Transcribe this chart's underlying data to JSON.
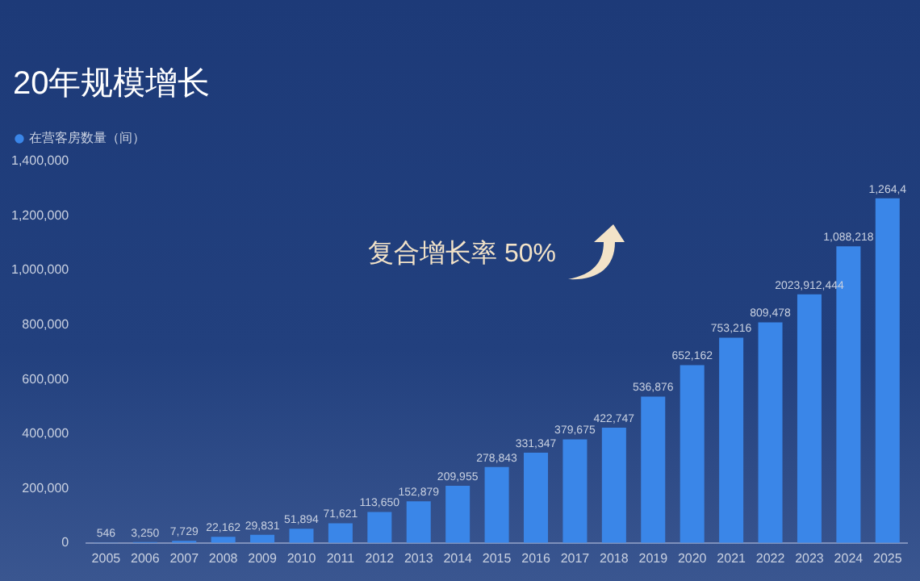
{
  "chart_data": {
    "type": "bar",
    "title": "20年规模增长",
    "categories": [
      "2005",
      "2006",
      "2007",
      "2008",
      "2009",
      "2010",
      "2011",
      "2012",
      "2013",
      "2014",
      "2015",
      "2016",
      "2017",
      "2018",
      "2019",
      "2020",
      "2021",
      "2022",
      "2023",
      "2024",
      "2025"
    ],
    "series": [
      {
        "name": "在营客房数量（间）",
        "color": "#3a86e8",
        "values": [
          546,
          3250,
          7729,
          22162,
          29831,
          51894,
          71621,
          113650,
          152879,
          209955,
          278843,
          331347,
          379675,
          422747,
          536876,
          652162,
          753216,
          809478,
          912444,
          1088218,
          1264400
        ],
        "value_labels": [
          "546",
          "3,250",
          "7,729",
          "22,162",
          "29,831",
          "51,894",
          "71,621",
          "113,650",
          "152,879",
          "209,955",
          "278,843",
          "331,347",
          "379,675",
          "422,747",
          "536,876",
          "652,162",
          "753,216",
          "809,478",
          "2023,912,444",
          "1,088,218",
          "1,264,4"
        ]
      }
    ],
    "ylim": [
      0,
      1400000
    ],
    "yticks": [
      0,
      {
        "value": 200000,
        "label": "200,000"
      },
      {
        "value": 400000,
        "label": "400,000"
      },
      {
        "value": 600000,
        "label": "600,000"
      },
      {
        "value": 800000,
        "label": "800,000"
      },
      {
        "value": 1000000,
        "label": "1,000,000"
      },
      {
        "value": 1200000,
        "label": "1,200,000"
      },
      {
        "value": 1400000,
        "label": "1,400,000"
      }
    ],
    "grid": false,
    "legend": "top left",
    "annotations": [
      "复合增长率 50%"
    ]
  }
}
